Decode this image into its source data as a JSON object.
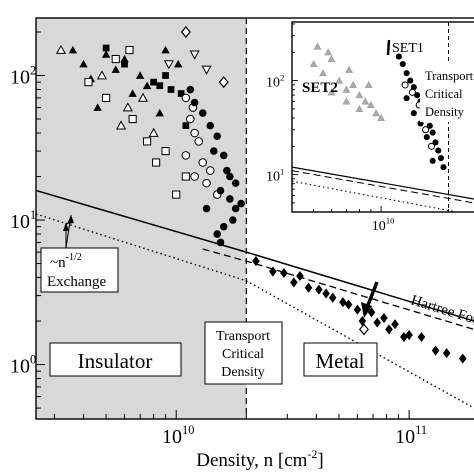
{
  "chart_data": [
    {
      "type": "scatter",
      "xlabel": "Density,  n [cm",
      "xlabel_sup": "-2",
      "xlabel_end": "]",
      "xscale": "log",
      "yscale": "log",
      "xlim": [
        2500000000.0,
        190000000000.0
      ],
      "ylim": [
        0.42,
        250
      ],
      "x_ticks": [
        {
          "value": 10000000000.0,
          "base": "10",
          "exp": "10"
        },
        {
          "value": 100000000000.0,
          "base": "10",
          "exp": "11"
        }
      ],
      "y_ticks": [
        {
          "value": 1,
          "base": "10",
          "exp": "0"
        },
        {
          "value": 10,
          "base": "10",
          "exp": "1"
        },
        {
          "value": 100,
          "base": "10",
          "exp": "2"
        }
      ],
      "shaded_region_x_max": 20000000000.0,
      "critical_density": 20000000000.0,
      "region_labels": {
        "insulator": "Insulator",
        "metal": "Metal"
      },
      "transport_label": [
        "Transport",
        "Critical",
        "Density"
      ],
      "exchange_label": [
        "~n",
        "-1/2",
        "Exchange"
      ],
      "hartree_label": "Hartree Fock",
      "lines": [
        {
          "kind": "solid",
          "points": [
            [
              2500000000.0,
              16
            ],
            [
              20000000000.0,
              6
            ],
            [
              190000000000.0,
              2.0
            ]
          ]
        },
        {
          "kind": "dashed",
          "points": [
            [
              13000000000.0,
              6.3
            ],
            [
              20000000000.0,
              5.2
            ],
            [
              190000000000.0,
              1.75
            ]
          ]
        },
        {
          "kind": "dotted",
          "points": [
            [
              2500000000.0,
              11
            ],
            [
              20000000000.0,
              3.8
            ],
            [
              190000000000.0,
              0.5
            ]
          ]
        }
      ],
      "series": [
        {
          "marker": "filled-triangle",
          "points": [
            [
              4000000000.0,
              120
            ],
            [
              4300000000.0,
              95
            ],
            [
              5000000000.0,
              140
            ],
            [
              5500000000.0,
              110
            ],
            [
              6500000000.0,
              75
            ],
            [
              7500000000.0,
              85
            ],
            [
              3600000000.0,
              150
            ],
            [
              4600000000.0,
              60
            ],
            [
              6000000000.0,
              130
            ],
            [
              8500000000.0,
              55
            ],
            [
              7000000000.0,
              100
            ],
            [
              9000000000.0,
              150
            ],
            [
              10200000000.0,
              120
            ]
          ]
        },
        {
          "marker": "open-triangle",
          "points": [
            [
              3200000000.0,
              150
            ],
            [
              4800000000.0,
              100
            ],
            [
              6200000000.0,
              60
            ],
            [
              7200000000.0,
              70
            ],
            [
              8000000000.0,
              40
            ],
            [
              5800000000.0,
              45
            ]
          ]
        },
        {
          "marker": "open-square",
          "points": [
            [
              4200000000.0,
              90
            ],
            [
              5000000000.0,
              70
            ],
            [
              6500000000.0,
              50
            ],
            [
              7500000000.0,
              35
            ],
            [
              8200000000.0,
              25
            ],
            [
              9000000000.0,
              30
            ],
            [
              11000000000.0,
              20
            ],
            [
              10000000000.0,
              15
            ],
            [
              5500000000.0,
              130
            ],
            [
              6300000000.0,
              150
            ]
          ]
        },
        {
          "marker": "filled-square",
          "points": [
            [
              5000000000.0,
              155
            ],
            [
              6000000000.0,
              120
            ],
            [
              8500000000.0,
              85
            ],
            [
              9500000000.0,
              80
            ],
            [
              9000000000.0,
              100
            ],
            [
              10500000000.0,
              75
            ],
            [
              8000000000.0,
              90
            ],
            [
              11000000000.0,
              45
            ]
          ]
        },
        {
          "marker": "open-diamond",
          "points": [
            [
              11000000000.0,
              200
            ],
            [
              16000000000.0,
              90
            ],
            [
              64000000000.0,
              1.75
            ]
          ]
        },
        {
          "marker": "open-inverted-triangle",
          "points": [
            [
              9300000000.0,
              120
            ],
            [
              12000000000.0,
              140
            ],
            [
              13500000000.0,
              110
            ]
          ]
        },
        {
          "marker": "open-circle",
          "points": [
            [
              11000000000.0,
              70
            ],
            [
              11500000000.0,
              50
            ],
            [
              12000000000.0,
              40
            ],
            [
              12500000000.0,
              35
            ],
            [
              11000000000.0,
              28
            ],
            [
              11800000000.0,
              60
            ],
            [
              13000000000.0,
              25
            ],
            [
              14000000000.0,
              22
            ],
            [
              13500000000.0,
              18
            ],
            [
              15000000000.0,
              15
            ],
            [
              12000000000.0,
              20
            ]
          ]
        },
        {
          "marker": "filled-circle",
          "points": [
            [
              11500000000.0,
              80
            ],
            [
              12000000000.0,
              65
            ],
            [
              13000000000.0,
              55
            ],
            [
              14000000000.0,
              45
            ],
            [
              15000000000.0,
              38
            ],
            [
              14500000000.0,
              30
            ],
            [
              16000000000.0,
              28
            ],
            [
              16500000000.0,
              22
            ],
            [
              17000000000.0,
              20
            ],
            [
              18000000000.0,
              18
            ],
            [
              15500000000.0,
              16
            ],
            [
              17000000000.0,
              14
            ],
            [
              18000000000.0,
              12
            ],
            [
              19000000000.0,
              13
            ],
            [
              17500000000.0,
              10
            ],
            [
              16000000000.0,
              9
            ],
            [
              13500000000.0,
              12
            ],
            [
              15000000000.0,
              8
            ],
            [
              15500000000.0,
              7
            ]
          ]
        },
        {
          "marker": "filled-diamond",
          "points": [
            [
              22000000000.0,
              5.2
            ],
            [
              26000000000.0,
              4.4
            ],
            [
              29000000000.0,
              4.3
            ],
            [
              32000000000.0,
              3.7
            ],
            [
              37000000000.0,
              3.4
            ],
            [
              41000000000.0,
              3.3
            ],
            [
              47000000000.0,
              2.9
            ],
            [
              55000000000.0,
              2.6
            ],
            [
              60000000000.0,
              2.4
            ],
            [
              69000000000.0,
              2.3
            ],
            [
              78000000000.0,
              2.1
            ],
            [
              87000000000.0,
              1.9
            ],
            [
              100000000000.0,
              1.6
            ],
            [
              113000000000.0,
              1.55
            ],
            [
              130000000000.0,
              1.25
            ],
            [
              145000000000.0,
              1.2
            ],
            [
              170000000000.0,
              1.1
            ],
            [
              34000000000.0,
              4.1
            ],
            [
              44000000000.0,
              3.1
            ],
            [
              52000000000.0,
              2.7
            ],
            [
              63000000000.0,
              2.0
            ],
            [
              73000000000.0,
              1.95
            ],
            [
              82000000000.0,
              1.75
            ],
            [
              95000000000.0,
              1.55
            ]
          ]
        }
      ]
    },
    {
      "type": "scatter",
      "inset": true,
      "xscale": "log",
      "yscale": "log",
      "xlim": [
        4000000000.0,
        26000000000.0
      ],
      "ylim": [
        4,
        420
      ],
      "x_ticks": [
        {
          "value": 10000000000.0,
          "base": "10",
          "exp": "10"
        }
      ],
      "y_ticks": [
        {
          "value": 10,
          "base": "10",
          "exp": "1"
        },
        {
          "value": 100,
          "base": "10",
          "exp": "2"
        }
      ],
      "critical_density": 20000000000.0,
      "series_labels": {
        "set1": "SET1",
        "set2": "SET2"
      },
      "transport_label": [
        "Transport",
        "Critical",
        "Density"
      ],
      "lines": [
        {
          "kind": "solid",
          "points": [
            [
              4000000000.0,
              12
            ],
            [
              26000000000.0,
              5.5
            ]
          ]
        },
        {
          "kind": "dashed",
          "points": [
            [
              4000000000.0,
              11
            ],
            [
              26000000000.0,
              5.0
            ]
          ]
        },
        {
          "kind": "dotted",
          "points": [
            [
              4000000000.0,
              8.5
            ],
            [
              26000000000.0,
              3.7
            ]
          ]
        }
      ],
      "series": [
        {
          "name": "SET2",
          "marker": "gray-triangle",
          "points": [
            [
              5000000000.0,
              150
            ],
            [
              5500000000.0,
              120
            ],
            [
              6000000000.0,
              170
            ],
            [
              6500000000.0,
              100
            ],
            [
              7000000000.0,
              80
            ],
            [
              7500000000.0,
              90
            ],
            [
              8000000000.0,
              70
            ],
            [
              8500000000.0,
              60
            ],
            [
              9000000000.0,
              55
            ],
            [
              6000000000.0,
              75
            ],
            [
              7000000000.0,
              60
            ],
            [
              8000000000.0,
              50
            ],
            [
              9500000000.0,
              45
            ],
            [
              10000000000.0,
              40
            ],
            [
              5200000000.0,
              230
            ],
            [
              5800000000.0,
              200
            ],
            [
              7200000000.0,
              130
            ],
            [
              8800000000.0,
              90
            ]
          ]
        },
        {
          "name": "SET1",
          "marker": "filled-circle",
          "points": [
            [
              12000000000.0,
              180
            ],
            [
              12500000000.0,
              150
            ],
            [
              13000000000.0,
              120
            ],
            [
              13500000000.0,
              100
            ],
            [
              14000000000.0,
              85
            ],
            [
              14500000000.0,
              70
            ],
            [
              15000000000.0,
              60
            ],
            [
              15500000000.0,
              50
            ],
            [
              16000000000.0,
              40
            ],
            [
              16500000000.0,
              33
            ],
            [
              17000000000.0,
              28
            ],
            [
              17500000000.0,
              22
            ],
            [
              18000000000.0,
              18
            ],
            [
              18500000000.0,
              15
            ],
            [
              19000000000.0,
              12
            ],
            [
              13000000000.0,
              65
            ],
            [
              14000000000.0,
              45
            ],
            [
              15000000000.0,
              35
            ],
            [
              16000000000.0,
              25
            ],
            [
              17000000000.0,
              14
            ]
          ]
        },
        {
          "name": "SET1",
          "marker": "open-circle",
          "points": [
            [
              12800000000.0,
              90
            ],
            [
              13800000000.0,
              75
            ],
            [
              14800000000.0,
              55
            ],
            [
              15800000000.0,
              30
            ],
            [
              16800000000.0,
              20
            ]
          ]
        }
      ]
    }
  ]
}
